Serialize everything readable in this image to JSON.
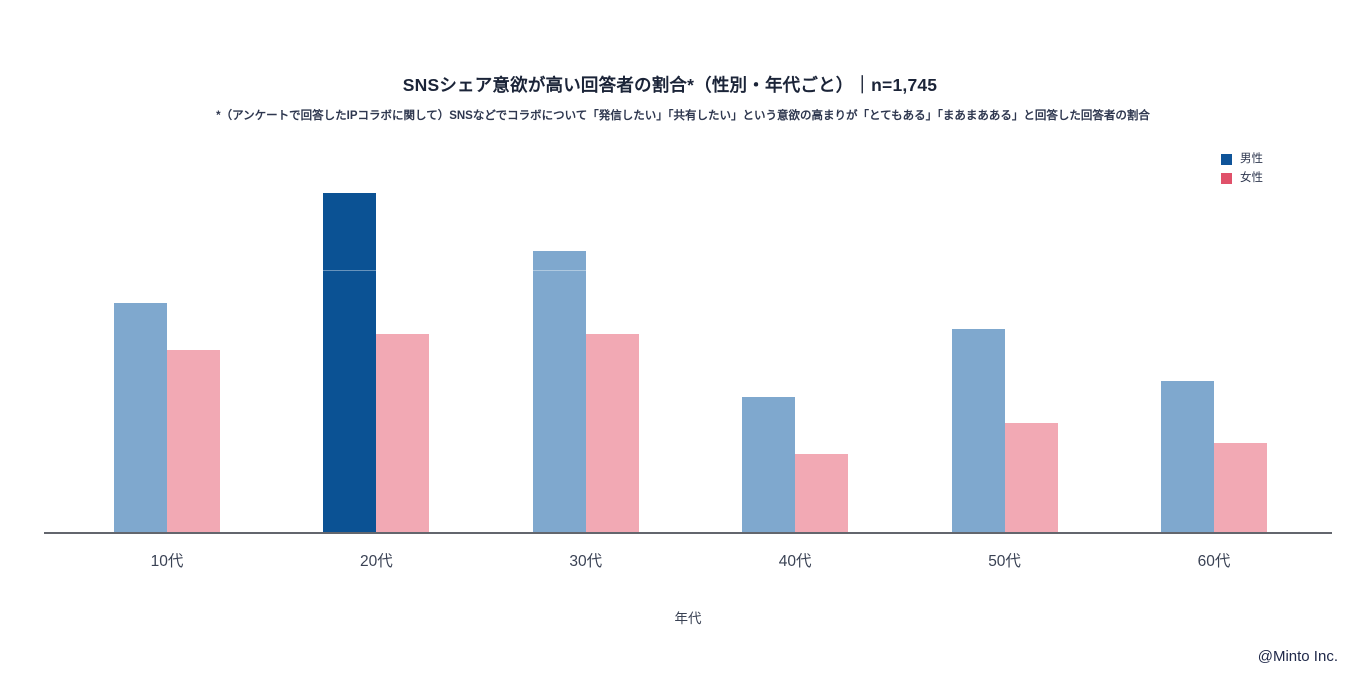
{
  "header": {
    "title": "SNSシェア意欲が高い回答者の割合*（性別・年代ごと）｜n=1,745",
    "subtitle": "*（アンケートで回答したIPコラボに関して）SNSなどでコラボについて「発信したい」「共有したい」という意欲の高まりが「とてもある」「まあまあある」と回答した回答者の割合"
  },
  "legend": {
    "items": [
      {
        "label": "男性",
        "color": "#0f5499"
      },
      {
        "label": "女性",
        "color": "#e0516a"
      }
    ]
  },
  "chart_data": {
    "type": "bar",
    "title": "SNSシェア意欲が高い回答者の割合*（性別・年代ごと）｜n=1,745",
    "categories": [
      "10代",
      "20代",
      "30代",
      "40代",
      "50代",
      "60代"
    ],
    "series": [
      {
        "name": "男性",
        "values": [
          44,
          65,
          54,
          26,
          39,
          29
        ]
      },
      {
        "name": "女性",
        "values": [
          35,
          38,
          38,
          15,
          21,
          17
        ]
      }
    ],
    "xlabel": "年代",
    "ylabel": "",
    "ylim": [
      0,
      70
    ],
    "grid": false,
    "legend_position": "top-right",
    "highlight_series_index": 0,
    "highlight_category_index": 1,
    "colors": {
      "male_bar": "#7fa8ce",
      "male_bar_highlight": "#0b5294",
      "female_bar": "#f2a9b4",
      "axis_line": "#63666d"
    }
  },
  "footer": {
    "credit": "@Minto Inc."
  }
}
